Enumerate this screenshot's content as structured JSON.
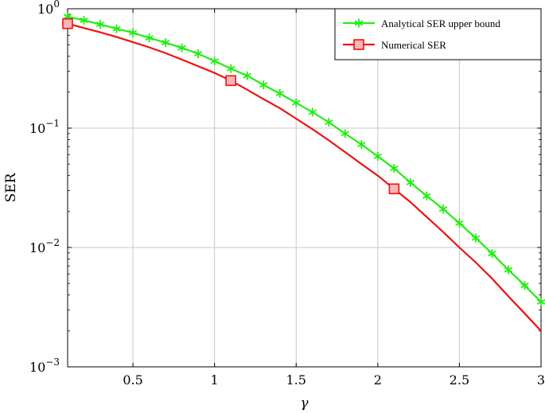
{
  "chart_data": {
    "type": "line",
    "xlabel": "γ",
    "ylabel": "SER",
    "xlim": [
      0.1,
      3.0
    ],
    "ylim": [
      0.001,
      1
    ],
    "y_scale": "log",
    "grid": true,
    "legend_position": "top-right",
    "x_ticks": [
      0.5,
      1,
      1.5,
      2,
      2.5,
      3
    ],
    "x_tick_labels": [
      "0.5",
      "1",
      "1.5",
      "2",
      "2.5",
      "3"
    ],
    "y_ticks": [
      {
        "value": 1,
        "base": "10",
        "exp": "0"
      },
      {
        "value": 0.1,
        "base": "10",
        "exp": "−1"
      },
      {
        "value": 0.01,
        "base": "10",
        "exp": "−2"
      },
      {
        "value": 0.001,
        "base": "10",
        "exp": "−3"
      }
    ],
    "series": [
      {
        "name": "Analytical SER upper bound",
        "color": "#22ee11",
        "marker": "star",
        "x": [
          0.1,
          0.2,
          0.3,
          0.4,
          0.5,
          0.6,
          0.7,
          0.8,
          0.9,
          1.0,
          1.1,
          1.2,
          1.3,
          1.4,
          1.5,
          1.6,
          1.7,
          1.8,
          1.9,
          2.0,
          2.1,
          2.2,
          2.3,
          2.4,
          2.5,
          2.6,
          2.7,
          2.8,
          2.9,
          3.0
        ],
        "y": [
          0.86,
          0.8,
          0.74,
          0.68,
          0.63,
          0.57,
          0.52,
          0.47,
          0.42,
          0.365,
          0.315,
          0.275,
          0.23,
          0.195,
          0.163,
          0.136,
          0.112,
          0.09,
          0.073,
          0.058,
          0.046,
          0.035,
          0.027,
          0.021,
          0.016,
          0.012,
          0.0089,
          0.0065,
          0.0048,
          0.0035
        ]
      },
      {
        "name": "Numerical SER",
        "color": "#ee1111",
        "marker": "square",
        "x": [
          0.1,
          0.2,
          0.3,
          0.4,
          0.5,
          0.6,
          0.7,
          0.8,
          0.9,
          1.0,
          1.1,
          1.2,
          1.3,
          1.4,
          1.5,
          1.6,
          1.7,
          1.8,
          1.9,
          2.0,
          2.1,
          2.2,
          2.3,
          2.4,
          2.5,
          2.6,
          2.7,
          2.8,
          2.9,
          3.0
        ],
        "y": [
          0.75,
          0.69,
          0.635,
          0.58,
          0.525,
          0.475,
          0.425,
          0.375,
          0.33,
          0.29,
          0.25,
          0.21,
          0.175,
          0.147,
          0.12,
          0.098,
          0.079,
          0.063,
          0.05,
          0.04,
          0.031,
          0.024,
          0.018,
          0.0135,
          0.01,
          0.0075,
          0.0055,
          0.0039,
          0.0028,
          0.002
        ],
        "marker_x": [
          0.1,
          1.1,
          2.1
        ]
      }
    ]
  }
}
